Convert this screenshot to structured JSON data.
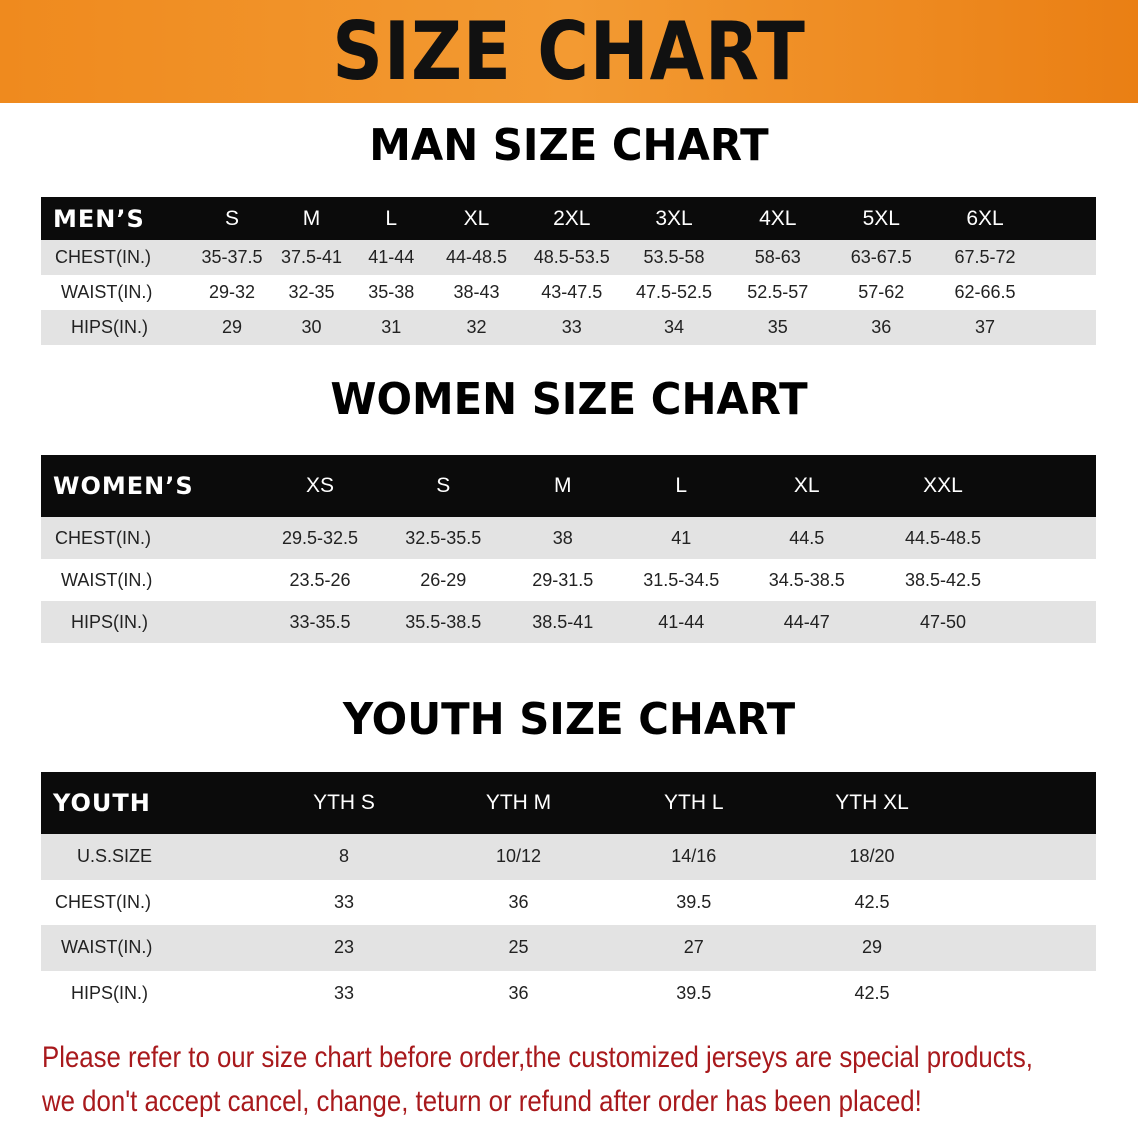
{
  "banner_title": "SIZE CHART",
  "colors": {
    "banner": "#f08c20",
    "header_row": "#0b0b0b",
    "stripe": "#e3e3e3",
    "note": "#a8191c"
  },
  "men": {
    "title": "MAN SIZE CHART",
    "header": "MEN’S",
    "sizes": [
      "S",
      "M",
      "L",
      "XL",
      "2XL",
      "3XL",
      "4XL",
      "5XL",
      "6XL"
    ],
    "rows": [
      {
        "label": "CHEST(IN.)",
        "values": [
          "35-37.5",
          "37.5-41",
          "41-44",
          "44-48.5",
          "48.5-53.5",
          "53.5-58",
          "58-63",
          "63-67.5",
          "67.5-72"
        ]
      },
      {
        "label": "WAIST(IN.)",
        "values": [
          "29-32",
          "32-35",
          "35-38",
          "38-43",
          "43-47.5",
          "47.5-52.5",
          "52.5-57",
          "57-62",
          "62-66.5"
        ]
      },
      {
        "label": "HIPS(IN.)",
        "values": [
          "29",
          "30",
          "31",
          "32",
          "33",
          "34",
          "35",
          "36",
          "37"
        ]
      }
    ]
  },
  "women": {
    "title": "WOMEN SIZE CHART",
    "header": "WOMEN’S",
    "sizes": [
      "XS",
      "S",
      "M",
      "L",
      "XL",
      "XXL"
    ],
    "rows": [
      {
        "label": "CHEST(IN.)",
        "values": [
          "29.5-32.5",
          "32.5-35.5",
          "38",
          "41",
          "44.5",
          "44.5-48.5"
        ]
      },
      {
        "label": "WAIST(IN.)",
        "values": [
          "23.5-26",
          "26-29",
          "29-31.5",
          "31.5-34.5",
          "34.5-38.5",
          "38.5-42.5"
        ]
      },
      {
        "label": "HIPS(IN.)",
        "values": [
          "33-35.5",
          "35.5-38.5",
          "38.5-41",
          "41-44",
          "44-47",
          "47-50"
        ]
      }
    ]
  },
  "youth": {
    "title": "YOUTH SIZE CHART",
    "header": "YOUTH",
    "sizes": [
      "YTH S",
      "YTH M",
      "YTH L",
      "YTH XL"
    ],
    "rows": [
      {
        "label": "U.S.SIZE",
        "values": [
          "8",
          "10/12",
          "14/16",
          "18/20"
        ]
      },
      {
        "label": "CHEST(IN.)",
        "values": [
          "33",
          "36",
          "39.5",
          "42.5"
        ]
      },
      {
        "label": "WAIST(IN.)",
        "values": [
          "23",
          "25",
          "27",
          "29"
        ]
      },
      {
        "label": "HIPS(IN.)",
        "values": [
          "33",
          "36",
          "39.5",
          "42.5"
        ]
      }
    ]
  },
  "note": {
    "line1": "Please refer to our size chart before order,the customized jerseys are special products,",
    "line2": "we don't accept cancel, change, teturn or refund after order has been placed!"
  }
}
